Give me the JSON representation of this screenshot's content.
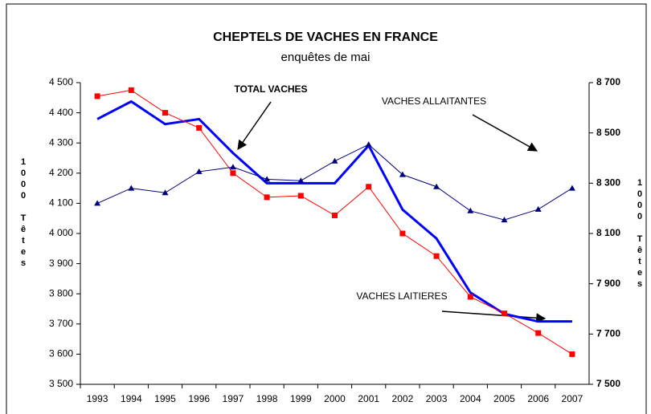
{
  "chart_data": {
    "type": "line",
    "title": "CHEPTELS DE VACHES EN FRANCE",
    "subtitle": "enquêtes de mai",
    "y_label": "1000 Têtes",
    "y2_label": "1000 Têtes",
    "categories": [
      "1993",
      "1994",
      "1995",
      "1996",
      "1997",
      "1998",
      "1999",
      "2000",
      "2001",
      "2002",
      "2003",
      "2004",
      "2005",
      "2006",
      "2007"
    ],
    "series": [
      {
        "name": "TOTAL VACHES",
        "color": "#0000ff",
        "axis": "y2",
        "values": [
          8555,
          8625,
          8535,
          8555,
          8420,
          8300,
          8300,
          8300,
          8450,
          8195,
          8080,
          7865,
          7780,
          7750,
          7750
        ]
      },
      {
        "name": "VACHES LAITIERES",
        "color": "#ff0000",
        "values": [
          4455,
          4475,
          4400,
          4350,
          4200,
          4120,
          4125,
          4060,
          4155,
          4000,
          3925,
          3790,
          3735,
          3670,
          3600
        ]
      },
      {
        "name": "VACHES ALLAITANTES",
        "color": "#000080",
        "values": [
          4100,
          4150,
          4135,
          4205,
          4220,
          4180,
          4175,
          4240,
          4295,
          4195,
          4155,
          4075,
          4045,
          4080,
          4150
        ]
      }
    ],
    "ylim": [
      3500,
      4500
    ],
    "yticks": [
      {
        "value": 3500,
        "label": "3 500"
      },
      {
        "value": 3600,
        "label": "3 600"
      },
      {
        "value": 3700,
        "label": "3 700"
      },
      {
        "value": 3800,
        "label": "3 800"
      },
      {
        "value": 3900,
        "label": "3 900"
      },
      {
        "value": 4000,
        "label": "4 000"
      },
      {
        "value": 4100,
        "label": "4 100"
      },
      {
        "value": 4200,
        "label": "4 200"
      },
      {
        "value": 4300,
        "label": "4 300"
      },
      {
        "value": 4400,
        "label": "4 400"
      },
      {
        "value": 4500,
        "label": "4 500"
      }
    ],
    "y2lim": [
      7500,
      8700
    ],
    "y2ticks": [
      {
        "value": 7500,
        "label": "7 500"
      },
      {
        "value": 7700,
        "label": "7 700"
      },
      {
        "value": 7900,
        "label": "7 900"
      },
      {
        "value": 8100,
        "label": "8 100"
      },
      {
        "value": 8300,
        "label": "8 300"
      },
      {
        "value": 8500,
        "label": "8 500"
      },
      {
        "value": 8700,
        "label": "8 700"
      }
    ],
    "grid": false
  }
}
